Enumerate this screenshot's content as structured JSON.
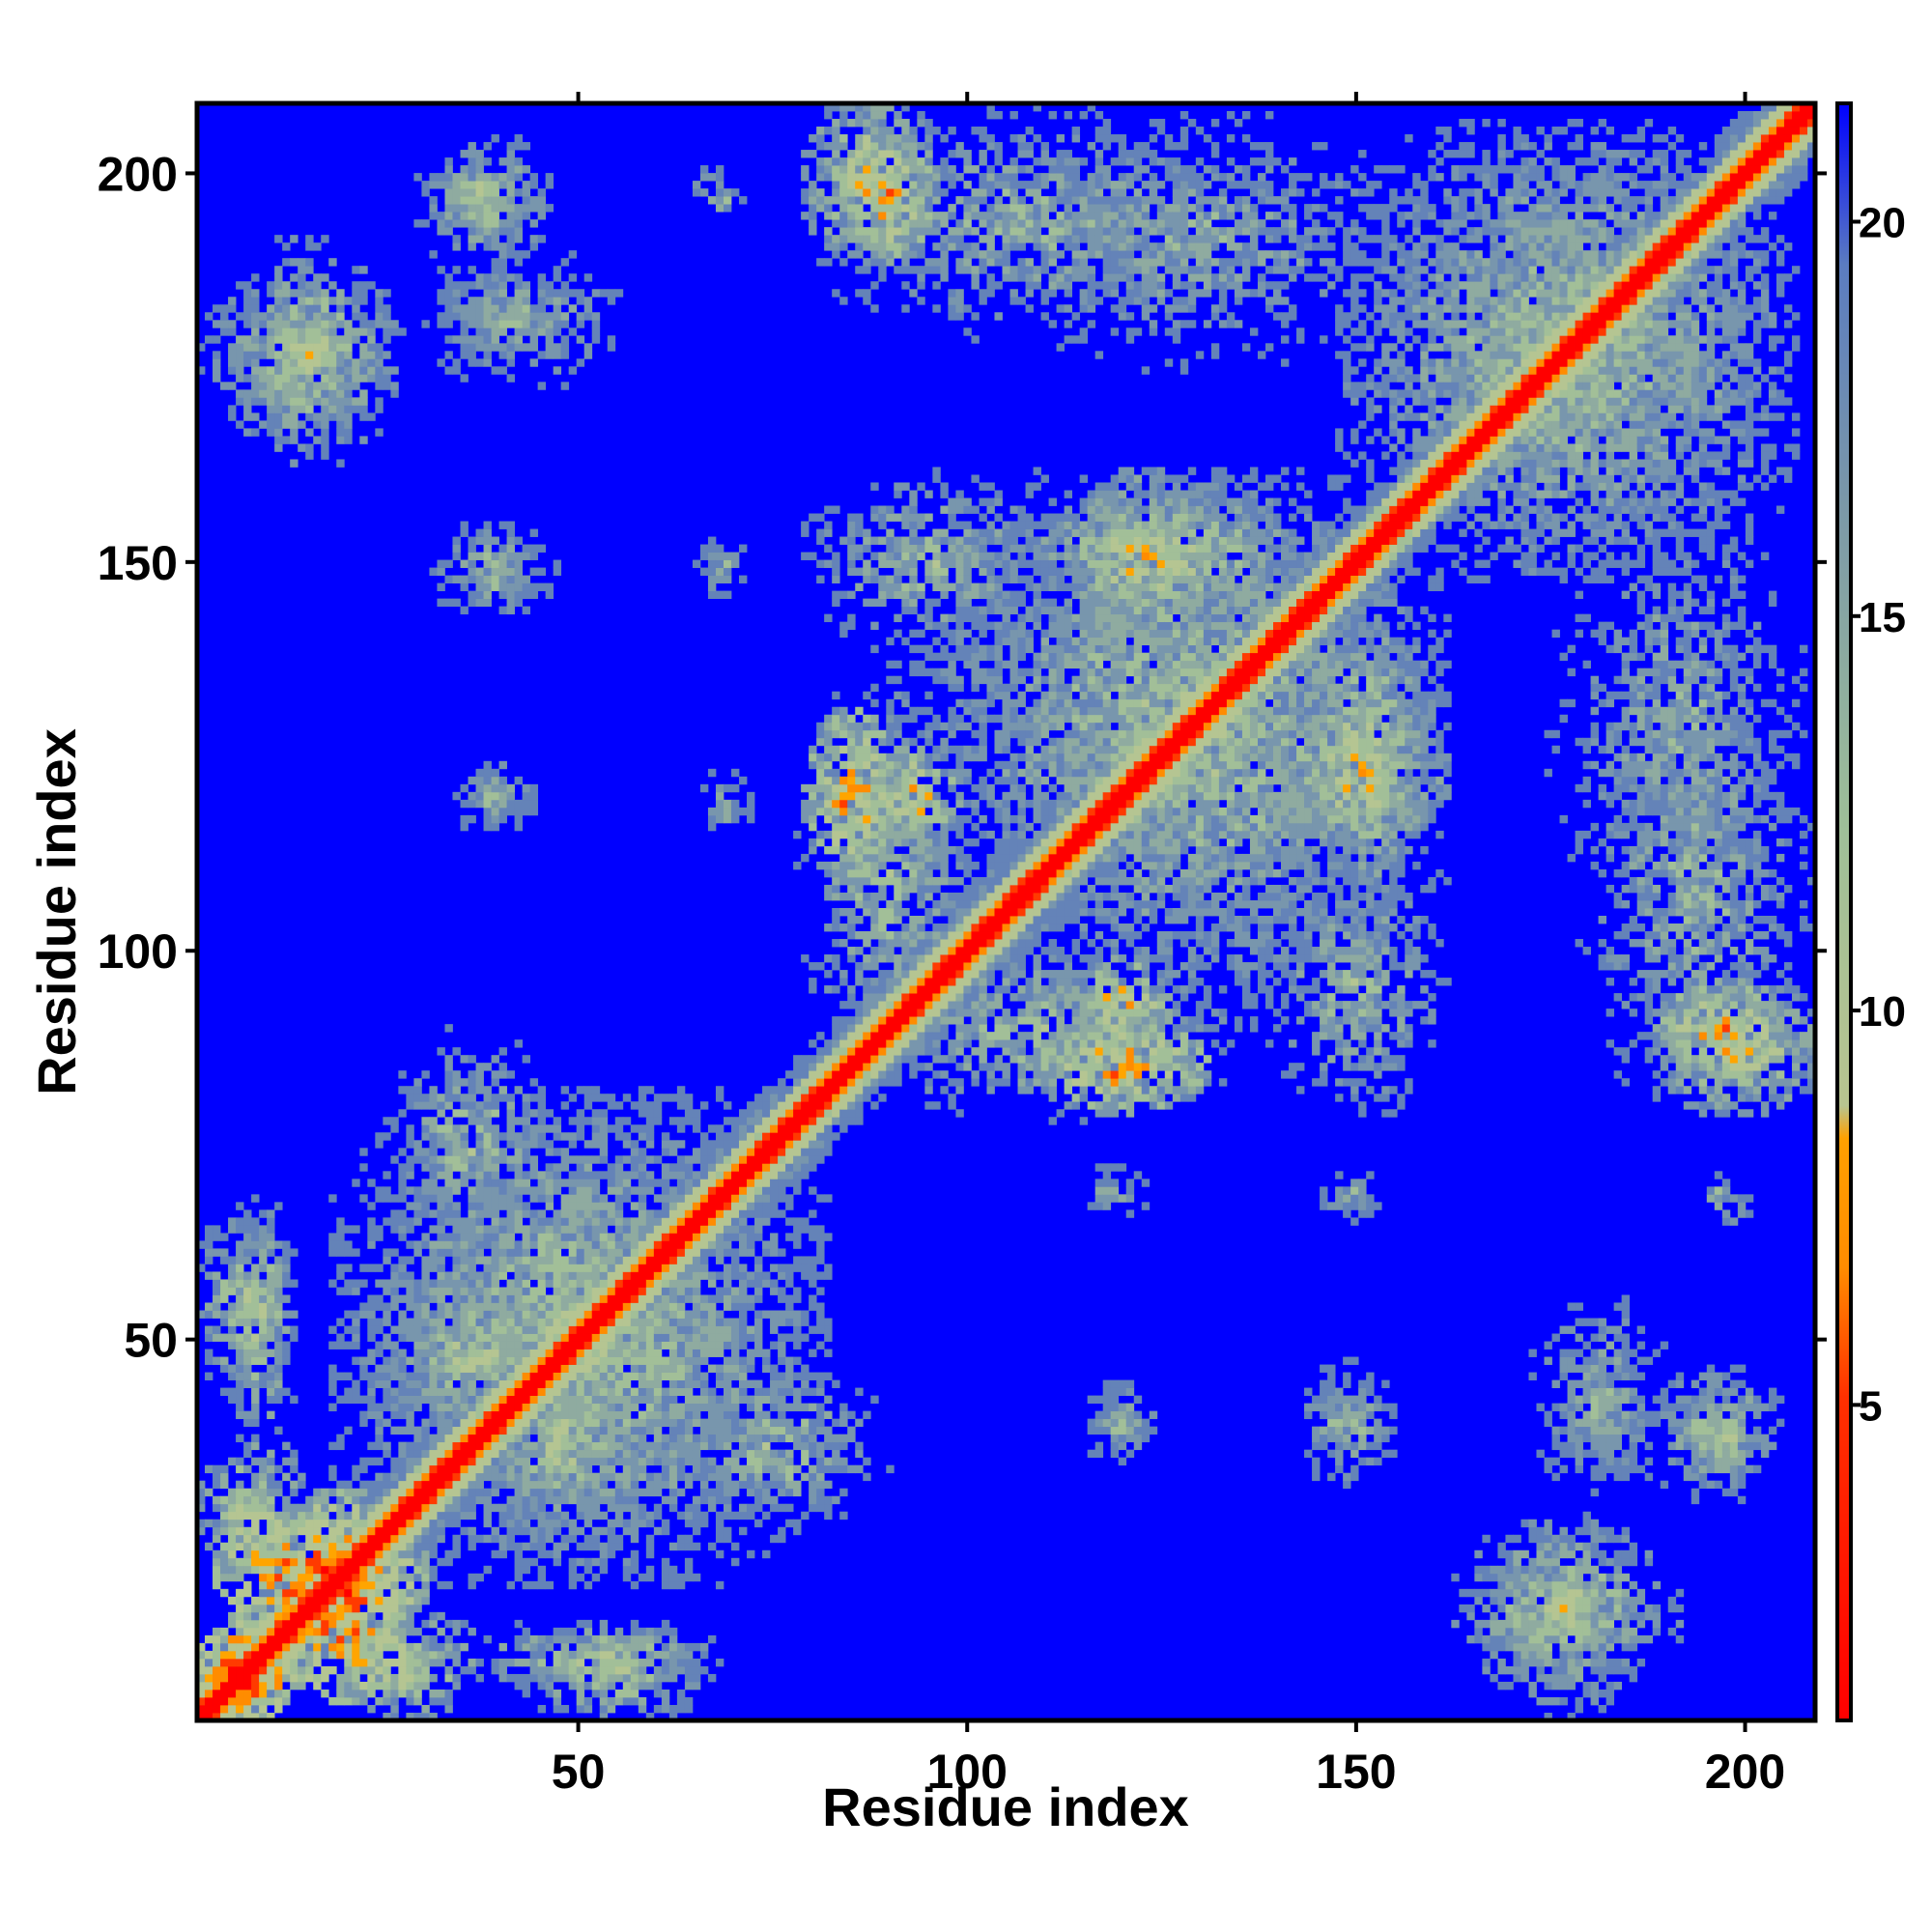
{
  "chart_data": {
    "type": "heatmap",
    "title": "",
    "xlabel": "Residue index",
    "ylabel": "Residue index",
    "xlim": [
      1,
      209
    ],
    "ylim": [
      1,
      209
    ],
    "x_ticks": [
      50,
      100,
      150,
      200
    ],
    "y_ticks": [
      50,
      100,
      150,
      200
    ],
    "x_tick_labels": [
      "50",
      "100",
      "150",
      "200"
    ],
    "y_tick_labels": [
      "50",
      "100",
      "150",
      "200"
    ],
    "colorbar": {
      "range": [
        1,
        21.5
      ],
      "ticks": [
        5,
        10,
        15,
        20
      ],
      "tick_labels": [
        "5",
        "10",
        "15",
        "20"
      ],
      "colors": [
        "#ff0000",
        "#ff8c00",
        "#a6c296",
        "#6f8fb8",
        "#0000ff"
      ]
    },
    "diagonal_band_width": 2,
    "contact_regions": [
      {
        "x": [
          1,
          12
        ],
        "y": [
          1,
          12
        ],
        "level": 3
      },
      {
        "x": [
          12,
          26
        ],
        "y": [
          5,
          28
        ],
        "level": 4
      },
      {
        "x": [
          1,
          14
        ],
        "y": [
          20,
          36
        ],
        "level": 9
      },
      {
        "x": [
          38,
          66
        ],
        "y": [
          5,
          13
        ],
        "level": 10
      },
      {
        "x": [
          1,
          12
        ],
        "y": [
          44,
          65
        ],
        "level": 10
      },
      {
        "x": [
          20,
          80
        ],
        "y": [
          20,
          80
        ],
        "level": 11
      },
      {
        "x": [
          27,
          45
        ],
        "y": [
          40,
          55
        ],
        "level": 9
      },
      {
        "x": [
          63,
          88
        ],
        "y": [
          27,
          45
        ],
        "level": 11
      },
      {
        "x": [
          20,
          34
        ],
        "y": [
          15,
          28
        ],
        "level": 12
      },
      {
        "x": [
          80,
          100
        ],
        "y": [
          85,
          135
        ],
        "level": 11
      },
      {
        "x": [
          88,
          98
        ],
        "y": [
          115,
          125
        ],
        "level": 6
      },
      {
        "x": [
          100,
          160
        ],
        "y": [
          95,
          160
        ],
        "level": 11
      },
      {
        "x": [
          110,
          130
        ],
        "y": [
          80,
          90
        ],
        "level": 6
      },
      {
        "x": [
          115,
          130
        ],
        "y": [
          140,
          160
        ],
        "level": 8
      },
      {
        "x": [
          145,
          158
        ],
        "y": [
          110,
          140
        ],
        "level": 8
      },
      {
        "x": [
          140,
          160
        ],
        "y": [
          80,
          110
        ],
        "level": 11
      },
      {
        "x": [
          150,
          205
        ],
        "y": [
          150,
          205
        ],
        "level": 11
      },
      {
        "x": [
          180,
          208
        ],
        "y": [
          80,
          135
        ],
        "level": 12
      },
      {
        "x": [
          190,
          205
        ],
        "y": [
          85,
          95
        ],
        "level": 6
      },
      {
        "x": [
          80,
          95
        ],
        "y": [
          190,
          209
        ],
        "level": 8
      },
      {
        "x": [
          100,
          160
        ],
        "y": [
          175,
          209
        ],
        "level": 13
      },
      {
        "x": [
          3,
          25
        ],
        "y": [
          168,
          186
        ],
        "level": 10
      },
      {
        "x": [
          30,
          45
        ],
        "y": [
          193,
          203
        ],
        "level": 10
      },
      {
        "x": [
          30,
          48
        ],
        "y": [
          175,
          190
        ],
        "level": 13
      },
      {
        "x": [
          31,
          47
        ],
        "y": [
          143,
          155
        ],
        "level": 12
      },
      {
        "x": [
          33,
          45
        ],
        "y": [
          115,
          125
        ],
        "level": 13
      },
      {
        "x": [
          64,
          72
        ],
        "y": [
          145,
          153
        ],
        "level": 13
      },
      {
        "x": [
          66,
          73
        ],
        "y": [
          115,
          122
        ],
        "level": 13
      },
      {
        "x": [
          115,
          125
        ],
        "y": [
          33,
          45
        ],
        "level": 12
      },
      {
        "x": [
          145,
          155
        ],
        "y": [
          33,
          45
        ],
        "level": 12
      },
      {
        "x": [
          173,
          190
        ],
        "y": [
          30,
          55
        ],
        "level": 12
      },
      {
        "x": [
          188,
          205
        ],
        "y": [
          30,
          45
        ],
        "level": 11
      },
      {
        "x": [
          165,
          190
        ],
        "y": [
          5,
          25
        ],
        "level": 10
      },
      {
        "x": [
          115,
          124
        ],
        "y": [
          65,
          72
        ],
        "level": 13
      },
      {
        "x": [
          146,
          154
        ],
        "y": [
          65,
          72
        ],
        "level": 13
      },
      {
        "x": [
          194,
          200
        ],
        "y": [
          65,
          72
        ],
        "level": 13
      },
      {
        "x": [
          64,
          70
        ],
        "y": [
          196,
          202
        ],
        "level": 13
      }
    ]
  }
}
